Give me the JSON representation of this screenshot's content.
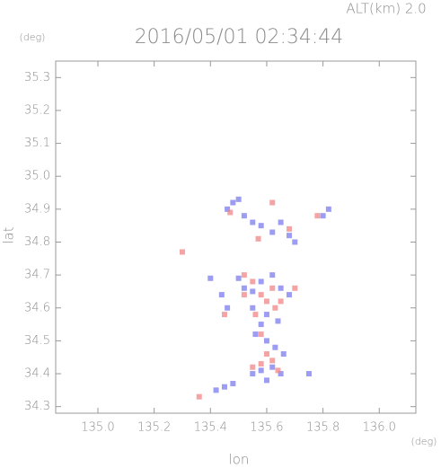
{
  "chart_data": {
    "type": "scatter",
    "title": "2016/05/01 02:34:44",
    "subtitle": "ALT(km) 2.0",
    "x_label": "lon",
    "y_label": "lat",
    "x_unit": "(deg)",
    "y_unit": "(deg)",
    "xlim": [
      134.85,
      136.13
    ],
    "ylim": [
      34.28,
      35.35
    ],
    "xticks": [
      {
        "value": 135,
        "label": "135.0"
      },
      135.2,
      135.4,
      135.6,
      135.8,
      {
        "value": 136,
        "label": "136.0"
      }
    ],
    "yticks": [
      35.3,
      35.2,
      35.1,
      {
        "value": 35,
        "label": "35.0"
      },
      34.9,
      34.8,
      34.7,
      34.6,
      34.5,
      34.4,
      34.3
    ],
    "series": [
      {
        "color": "#7b7bef",
        "x": [
          135.46,
          135.48,
          135.5,
          135.52,
          135.55,
          135.58,
          135.62,
          135.65,
          135.68,
          135.7,
          135.82,
          135.8,
          135.5,
          135.52,
          135.55,
          135.58,
          135.62,
          135.65,
          135.68,
          135.55,
          135.6,
          135.64,
          135.58,
          135.56,
          135.6,
          135.63,
          135.66,
          135.62,
          135.58,
          135.55,
          135.6,
          135.65,
          135.45,
          135.42,
          135.48,
          135.4,
          135.44,
          135.46,
          135.75
        ],
        "y": [
          34.9,
          34.92,
          34.93,
          34.88,
          34.86,
          34.85,
          34.83,
          34.86,
          34.82,
          34.8,
          34.9,
          34.88,
          34.69,
          34.66,
          34.65,
          34.68,
          34.7,
          34.66,
          34.64,
          34.6,
          34.58,
          34.56,
          34.55,
          34.52,
          34.5,
          34.48,
          34.46,
          34.42,
          34.41,
          34.4,
          34.38,
          34.4,
          34.36,
          34.35,
          34.37,
          34.69,
          34.64,
          34.6,
          34.4
        ]
      },
      {
        "color": "#f08585",
        "x": [
          135.47,
          135.62,
          135.57,
          135.68,
          135.78,
          135.52,
          135.55,
          135.58,
          135.52,
          135.62,
          135.65,
          135.6,
          135.56,
          135.63,
          135.58,
          135.6,
          135.62,
          135.55,
          135.58,
          135.64,
          135.36,
          135.3,
          135.45,
          135.7
        ],
        "y": [
          34.89,
          34.92,
          34.81,
          34.84,
          34.88,
          34.7,
          34.68,
          34.64,
          34.64,
          34.66,
          34.62,
          34.62,
          34.58,
          34.6,
          34.52,
          34.46,
          34.44,
          34.42,
          34.43,
          34.41,
          34.33,
          34.77,
          34.58,
          34.66
        ]
      }
    ]
  }
}
